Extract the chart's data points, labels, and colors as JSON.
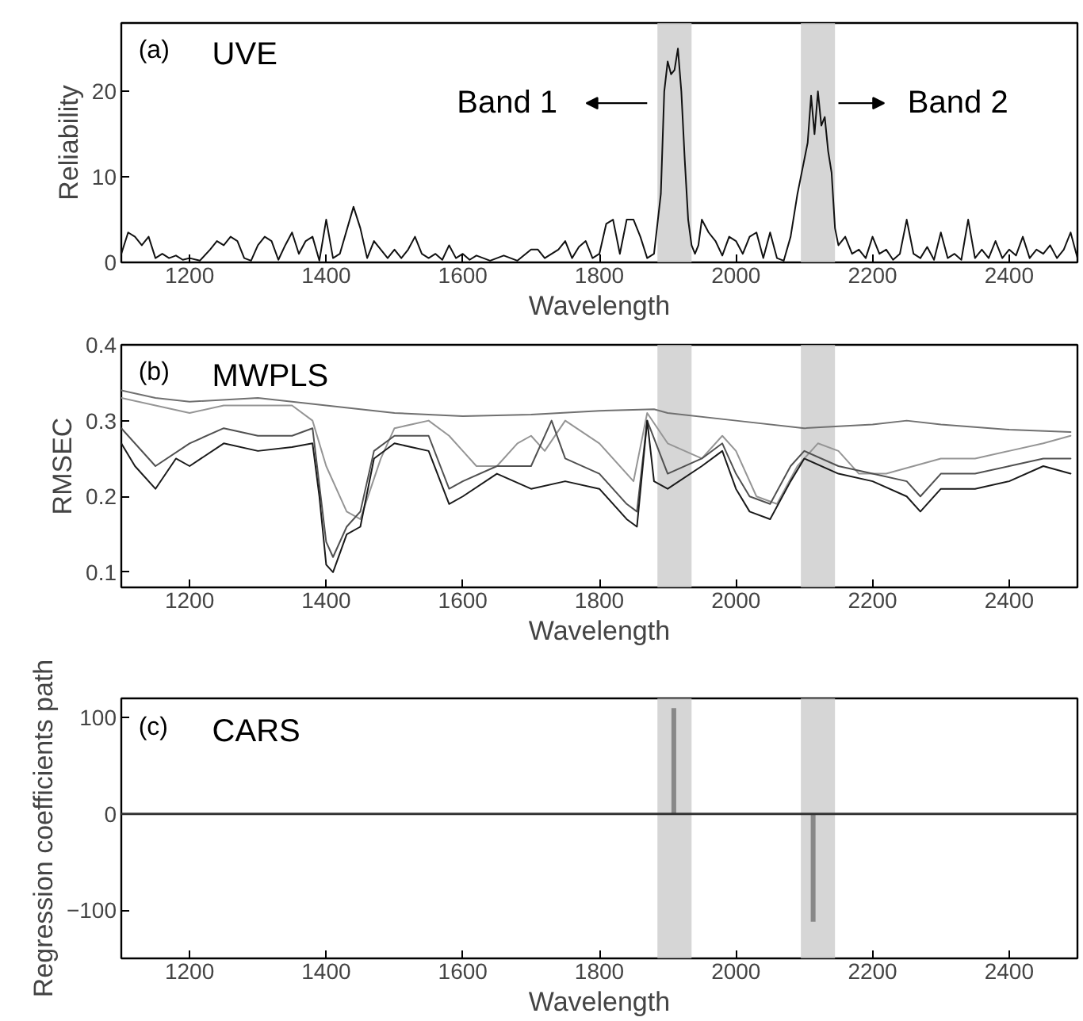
{
  "chart_data": [
    {
      "type": "line",
      "title": "(a)",
      "subtitle": "UVE",
      "xlabel": "Wavelength",
      "ylabel": "Reliability",
      "xlim": [
        1100,
        2500
      ],
      "ylim": [
        0,
        28
      ],
      "xticks": [
        1200,
        1400,
        1600,
        1800,
        2000,
        2200,
        2400
      ],
      "yticks": [
        0,
        10,
        20
      ],
      "bands": [
        {
          "axis": "x",
          "from": 1885,
          "to": 1935,
          "color": "#c8c8c8"
        },
        {
          "axis": "x",
          "from": 2095,
          "to": 2145,
          "color": "#c8c8c8"
        }
      ],
      "annotations": [
        "Band 1",
        "Band 2"
      ],
      "series": [
        {
          "color": "#111111",
          "x": [
            1100,
            1110,
            1120,
            1130,
            1140,
            1150,
            1160,
            1170,
            1180,
            1190,
            1200,
            1215,
            1230,
            1240,
            1250,
            1260,
            1270,
            1280,
            1290,
            1300,
            1310,
            1320,
            1330,
            1340,
            1350,
            1360,
            1370,
            1380,
            1390,
            1400,
            1410,
            1420,
            1440,
            1450,
            1460,
            1470,
            1480,
            1490,
            1500,
            1510,
            1520,
            1530,
            1540,
            1550,
            1560,
            1570,
            1580,
            1590,
            1600,
            1610,
            1620,
            1640,
            1660,
            1680,
            1700,
            1710,
            1720,
            1740,
            1750,
            1760,
            1770,
            1780,
            1790,
            1800,
            1810,
            1820,
            1830,
            1840,
            1850,
            1860,
            1870,
            1880,
            1890,
            1895,
            1900,
            1905,
            1910,
            1915,
            1920,
            1925,
            1930,
            1935,
            1940,
            1945,
            1950,
            1960,
            1970,
            1980,
            1990,
            2000,
            2010,
            2020,
            2030,
            2040,
            2050,
            2060,
            2070,
            2080,
            2090,
            2095,
            2100,
            2105,
            2110,
            2115,
            2120,
            2125,
            2130,
            2135,
            2140,
            2145,
            2150,
            2160,
            2170,
            2180,
            2190,
            2200,
            2210,
            2220,
            2230,
            2240,
            2250,
            2260,
            2270,
            2280,
            2290,
            2300,
            2310,
            2320,
            2330,
            2340,
            2350,
            2360,
            2370,
            2380,
            2390,
            2400,
            2410,
            2420,
            2430,
            2440,
            2450,
            2460,
            2470,
            2480,
            2490,
            2500
          ],
          "values": [
            1,
            3.5,
            3,
            2,
            3,
            0.5,
            1,
            0.5,
            0.8,
            0.3,
            0.5,
            0.2,
            1.5,
            2.5,
            2,
            3,
            2.5,
            0.5,
            0.2,
            2,
            3,
            2.5,
            0.3,
            2,
            3.5,
            1,
            2.5,
            3,
            0.2,
            5,
            0.5,
            1,
            6.5,
            4,
            0.5,
            2.5,
            1.5,
            0.5,
            1.5,
            0.5,
            1.5,
            3,
            1,
            0.5,
            1,
            0.3,
            2,
            0.5,
            1,
            0.3,
            0.8,
            0.2,
            0.8,
            0.2,
            1.5,
            1.5,
            0.5,
            1.5,
            2.5,
            0.5,
            1.8,
            2.5,
            0.5,
            1,
            4.5,
            5,
            1,
            5,
            5,
            3,
            0.5,
            1,
            8,
            20,
            23.5,
            22,
            22.5,
            25,
            20,
            12,
            5,
            2,
            1,
            2,
            5,
            3.5,
            2.5,
            0.8,
            3,
            2.5,
            1,
            3,
            3.5,
            0.5,
            3.5,
            0.5,
            0.2,
            3,
            8,
            10,
            12,
            14,
            19.5,
            15,
            20,
            16,
            17,
            13,
            10.5,
            4,
            2,
            3,
            1,
            1.5,
            0.5,
            3,
            1,
            1.5,
            0.3,
            1,
            5,
            1,
            0.5,
            1.8,
            0.3,
            3.5,
            0.5,
            1,
            0.3,
            5,
            0.5,
            1.5,
            0.5,
            2.5,
            0.5,
            1.5,
            0.8,
            3,
            0.5,
            1.5,
            1,
            2,
            0.5,
            1.5,
            3.5,
            0.5
          ]
        }
      ]
    },
    {
      "type": "line",
      "title": "(b)",
      "subtitle": "MWPLS",
      "xlabel": "Wavelength",
      "ylabel": "RMSEC",
      "xlim": [
        1100,
        2500
      ],
      "ylim": [
        0.08,
        0.4
      ],
      "xticks": [
        1200,
        1400,
        1600,
        1800,
        2000,
        2200,
        2400
      ],
      "yticks": [
        0.1,
        0.2,
        0.3,
        0.4
      ],
      "bands": [
        {
          "axis": "x",
          "from": 1885,
          "to": 1935,
          "color": "#c8c8c8"
        },
        {
          "axis": "x",
          "from": 2095,
          "to": 2145,
          "color": "#c8c8c8"
        }
      ],
      "series": [
        {
          "color": "#707070",
          "x": [
            1100,
            1150,
            1200,
            1300,
            1400,
            1500,
            1600,
            1700,
            1800,
            1880,
            1900,
            2000,
            2100,
            2200,
            2250,
            2300,
            2400,
            2490
          ],
          "values": [
            0.34,
            0.33,
            0.325,
            0.33,
            0.32,
            0.31,
            0.306,
            0.308,
            0.313,
            0.315,
            0.31,
            0.3,
            0.29,
            0.295,
            0.3,
            0.295,
            0.288,
            0.285
          ]
        },
        {
          "color": "#959595",
          "x": [
            1100,
            1150,
            1200,
            1250,
            1300,
            1350,
            1380,
            1400,
            1430,
            1450,
            1480,
            1500,
            1550,
            1580,
            1600,
            1620,
            1650,
            1680,
            1700,
            1720,
            1750,
            1800,
            1850,
            1870,
            1900,
            1950,
            1980,
            2000,
            2030,
            2060,
            2090,
            2120,
            2150,
            2180,
            2220,
            2260,
            2300,
            2350,
            2400,
            2450,
            2490
          ],
          "values": [
            0.33,
            0.32,
            0.31,
            0.32,
            0.32,
            0.32,
            0.3,
            0.24,
            0.18,
            0.17,
            0.25,
            0.29,
            0.3,
            0.28,
            0.26,
            0.24,
            0.24,
            0.27,
            0.28,
            0.26,
            0.3,
            0.27,
            0.22,
            0.31,
            0.27,
            0.25,
            0.28,
            0.26,
            0.2,
            0.19,
            0.24,
            0.27,
            0.26,
            0.23,
            0.23,
            0.24,
            0.25,
            0.25,
            0.26,
            0.27,
            0.28
          ]
        },
        {
          "color": "#505050",
          "x": [
            1100,
            1150,
            1200,
            1250,
            1300,
            1350,
            1380,
            1400,
            1410,
            1430,
            1450,
            1470,
            1500,
            1550,
            1580,
            1600,
            1650,
            1700,
            1730,
            1750,
            1800,
            1840,
            1855,
            1870,
            1900,
            1950,
            1980,
            2000,
            2020,
            2050,
            2080,
            2100,
            2150,
            2200,
            2250,
            2270,
            2300,
            2350,
            2400,
            2450,
            2490
          ],
          "values": [
            0.29,
            0.24,
            0.27,
            0.29,
            0.28,
            0.28,
            0.29,
            0.14,
            0.12,
            0.16,
            0.18,
            0.26,
            0.28,
            0.28,
            0.21,
            0.22,
            0.24,
            0.24,
            0.3,
            0.25,
            0.23,
            0.19,
            0.18,
            0.3,
            0.23,
            0.25,
            0.27,
            0.23,
            0.2,
            0.19,
            0.24,
            0.26,
            0.24,
            0.23,
            0.22,
            0.2,
            0.23,
            0.23,
            0.24,
            0.25,
            0.25
          ]
        },
        {
          "color": "#1a1a1a",
          "x": [
            1100,
            1120,
            1150,
            1180,
            1200,
            1250,
            1300,
            1350,
            1380,
            1390,
            1400,
            1410,
            1430,
            1450,
            1470,
            1500,
            1550,
            1580,
            1600,
            1650,
            1700,
            1750,
            1800,
            1840,
            1855,
            1870,
            1880,
            1900,
            1950,
            1980,
            2000,
            2020,
            2050,
            2080,
            2100,
            2150,
            2200,
            2250,
            2270,
            2300,
            2350,
            2400,
            2450,
            2490
          ],
          "values": [
            0.27,
            0.24,
            0.21,
            0.25,
            0.24,
            0.27,
            0.26,
            0.265,
            0.27,
            0.2,
            0.11,
            0.1,
            0.15,
            0.16,
            0.25,
            0.27,
            0.26,
            0.19,
            0.2,
            0.23,
            0.21,
            0.22,
            0.21,
            0.17,
            0.16,
            0.3,
            0.22,
            0.21,
            0.24,
            0.26,
            0.21,
            0.18,
            0.17,
            0.22,
            0.25,
            0.23,
            0.22,
            0.2,
            0.18,
            0.21,
            0.21,
            0.22,
            0.24,
            0.23
          ]
        }
      ]
    },
    {
      "type": "bar",
      "title": "(c)",
      "subtitle": "CARS",
      "xlabel": "Wavelength",
      "ylabel": "Regression coefficients path",
      "xlim": [
        1100,
        2500
      ],
      "ylim": [
        -150,
        120
      ],
      "xticks": [
        1200,
        1400,
        1600,
        1800,
        2000,
        2200,
        2400
      ],
      "yticks": [
        -100,
        0,
        100
      ],
      "bands": [
        {
          "axis": "x",
          "from": 1885,
          "to": 1935,
          "color": "#c8c8c8"
        },
        {
          "axis": "x",
          "from": 2095,
          "to": 2145,
          "color": "#c8c8c8"
        }
      ],
      "ref_lines": [
        {
          "axis": "y",
          "value": 0,
          "color": "#333333"
        }
      ],
      "series": [
        {
          "color": "#888888",
          "x": [
            1909,
            2113
          ],
          "values": [
            110,
            -112
          ]
        }
      ]
    }
  ]
}
